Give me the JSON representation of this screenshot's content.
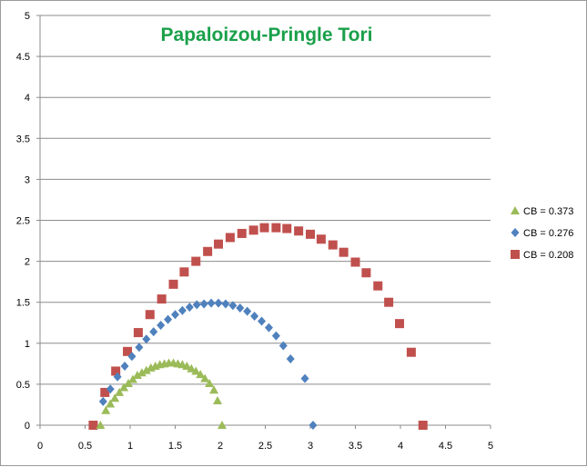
{
  "chart_data": {
    "type": "scatter",
    "title": "Papaloizou-Pringle Tori",
    "xlabel": "",
    "ylabel": "",
    "xlim": [
      0,
      5
    ],
    "ylim": [
      0,
      5
    ],
    "x_ticks": [
      "0",
      "0.5",
      "1",
      "1.5",
      "2",
      "2.5",
      "3",
      "3.5",
      "4",
      "4.5",
      "5"
    ],
    "y_ticks": [
      "0",
      "0.5",
      "1",
      "1.5",
      "2",
      "2.5",
      "3",
      "3.5",
      "4",
      "4.5",
      "5"
    ],
    "grid": "horizontal",
    "legend_position": "right",
    "series": [
      {
        "name": "CB = 0.373",
        "marker": "triangle",
        "color": "#9bbb59",
        "points": [
          [
            0.67,
            0.0
          ],
          [
            0.73,
            0.18
          ],
          [
            0.78,
            0.26
          ],
          [
            0.83,
            0.33
          ],
          [
            0.88,
            0.4
          ],
          [
            0.93,
            0.46
          ],
          [
            0.98,
            0.51
          ],
          [
            1.03,
            0.56
          ],
          [
            1.08,
            0.61
          ],
          [
            1.13,
            0.64
          ],
          [
            1.18,
            0.67
          ],
          [
            1.23,
            0.7
          ],
          [
            1.28,
            0.72
          ],
          [
            1.33,
            0.74
          ],
          [
            1.38,
            0.75
          ],
          [
            1.43,
            0.76
          ],
          [
            1.48,
            0.76
          ],
          [
            1.53,
            0.75
          ],
          [
            1.58,
            0.74
          ],
          [
            1.63,
            0.72
          ],
          [
            1.68,
            0.69
          ],
          [
            1.73,
            0.66
          ],
          [
            1.78,
            0.62
          ],
          [
            1.83,
            0.57
          ],
          [
            1.88,
            0.51
          ],
          [
            1.93,
            0.43
          ],
          [
            1.97,
            0.3
          ],
          [
            2.02,
            0.0
          ]
        ]
      },
      {
        "name": "CB = 0.276",
        "marker": "diamond",
        "color": "#4f81bd",
        "points": [
          [
            0.7,
            0.29
          ],
          [
            0.78,
            0.44
          ],
          [
            0.86,
            0.59
          ],
          [
            0.94,
            0.72
          ],
          [
            1.02,
            0.84
          ],
          [
            1.1,
            0.95
          ],
          [
            1.18,
            1.05
          ],
          [
            1.26,
            1.14
          ],
          [
            1.34,
            1.22
          ],
          [
            1.42,
            1.29
          ],
          [
            1.5,
            1.35
          ],
          [
            1.58,
            1.4
          ],
          [
            1.66,
            1.44
          ],
          [
            1.74,
            1.47
          ],
          [
            1.82,
            1.48
          ],
          [
            1.9,
            1.49
          ],
          [
            1.98,
            1.49
          ],
          [
            2.06,
            1.48
          ],
          [
            2.14,
            1.46
          ],
          [
            2.22,
            1.43
          ],
          [
            2.3,
            1.39
          ],
          [
            2.38,
            1.33
          ],
          [
            2.46,
            1.27
          ],
          [
            2.54,
            1.19
          ],
          [
            2.62,
            1.09
          ],
          [
            2.7,
            0.97
          ],
          [
            2.78,
            0.81
          ],
          [
            2.94,
            0.57
          ],
          [
            3.03,
            0.0
          ]
        ]
      },
      {
        "name": "CB = 0.208",
        "marker": "square",
        "color": "#c0504d",
        "points": [
          [
            0.59,
            0.0
          ],
          [
            0.72,
            0.4
          ],
          [
            0.84,
            0.66
          ],
          [
            0.97,
            0.9
          ],
          [
            1.09,
            1.13
          ],
          [
            1.22,
            1.35
          ],
          [
            1.35,
            1.54
          ],
          [
            1.48,
            1.72
          ],
          [
            1.6,
            1.87
          ],
          [
            1.73,
            2.0
          ],
          [
            1.86,
            2.12
          ],
          [
            1.98,
            2.21
          ],
          [
            2.11,
            2.29
          ],
          [
            2.24,
            2.34
          ],
          [
            2.37,
            2.38
          ],
          [
            2.49,
            2.41
          ],
          [
            2.62,
            2.41
          ],
          [
            2.74,
            2.4
          ],
          [
            2.87,
            2.37
          ],
          [
            3.0,
            2.33
          ],
          [
            3.12,
            2.27
          ],
          [
            3.25,
            2.2
          ],
          [
            3.37,
            2.11
          ],
          [
            3.5,
            1.99
          ],
          [
            3.62,
            1.86
          ],
          [
            3.75,
            1.7
          ],
          [
            3.87,
            1.5
          ],
          [
            3.99,
            1.24
          ],
          [
            4.12,
            0.89
          ],
          [
            4.25,
            0.0
          ]
        ]
      }
    ]
  }
}
